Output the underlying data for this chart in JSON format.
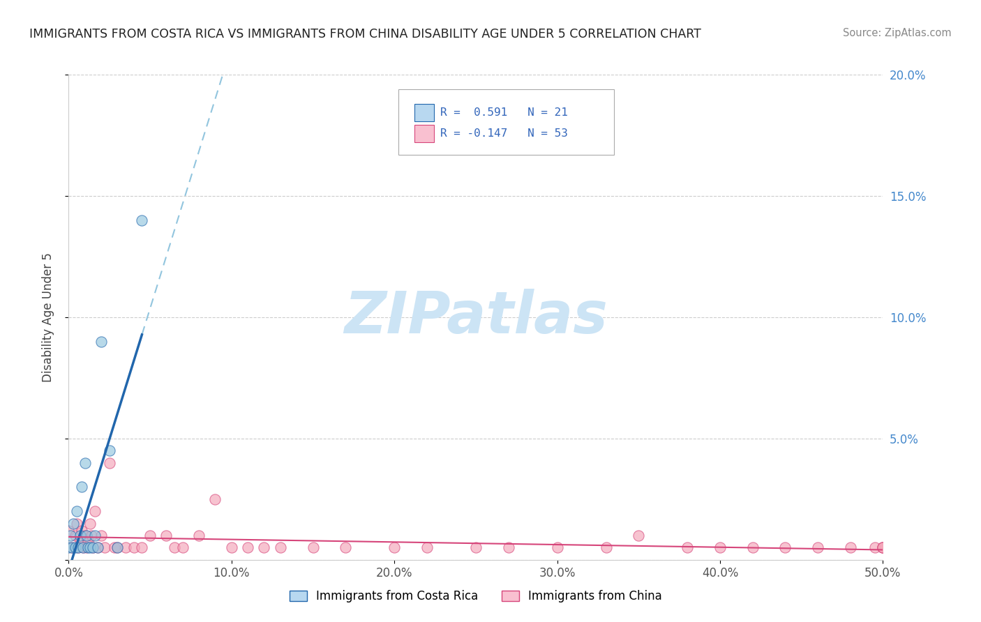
{
  "title": "IMMIGRANTS FROM COSTA RICA VS IMMIGRANTS FROM CHINA DISABILITY AGE UNDER 5 CORRELATION CHART",
  "source": "Source: ZipAtlas.com",
  "ylabel": "Disability Age Under 5",
  "xmin": 0.0,
  "xmax": 0.5,
  "ymin": 0.0,
  "ymax": 0.2,
  "xtick_labels": [
    "0.0%",
    "10.0%",
    "20.0%",
    "30.0%",
    "40.0%",
    "50.0%"
  ],
  "xtick_vals": [
    0.0,
    0.1,
    0.2,
    0.3,
    0.4,
    0.5
  ],
  "ytick_labels": [
    "",
    "5.0%",
    "10.0%",
    "15.0%",
    "20.0%"
  ],
  "ytick_vals": [
    0.0,
    0.05,
    0.1,
    0.15,
    0.2
  ],
  "costa_rica_R": 0.591,
  "costa_rica_N": 21,
  "china_R": -0.147,
  "china_N": 53,
  "color_blue": "#92c5de",
  "color_pink": "#f4a4b8",
  "color_blue_line": "#2166ac",
  "color_pink_line": "#d6457a",
  "color_blue_dashed": "#92c5de",
  "legend_blue_box": "#b8d8f0",
  "legend_pink_box": "#f9c0d0",
  "watermark_color": "#cce4f5",
  "costa_rica_x": [
    0.0,
    0.001,
    0.002,
    0.003,
    0.004,
    0.005,
    0.006,
    0.007,
    0.008,
    0.009,
    0.01,
    0.011,
    0.012,
    0.013,
    0.015,
    0.016,
    0.018,
    0.02,
    0.025,
    0.03,
    0.045
  ],
  "costa_rica_y": [
    0.005,
    0.01,
    0.005,
    0.015,
    0.005,
    0.02,
    0.005,
    0.01,
    0.03,
    0.005,
    0.04,
    0.01,
    0.005,
    0.005,
    0.005,
    0.01,
    0.005,
    0.09,
    0.045,
    0.005,
    0.14
  ],
  "china_x": [
    0.0,
    0.002,
    0.004,
    0.005,
    0.006,
    0.007,
    0.008,
    0.009,
    0.01,
    0.011,
    0.012,
    0.013,
    0.014,
    0.015,
    0.016,
    0.018,
    0.02,
    0.022,
    0.025,
    0.028,
    0.03,
    0.035,
    0.04,
    0.045,
    0.05,
    0.06,
    0.065,
    0.07,
    0.08,
    0.09,
    0.1,
    0.11,
    0.12,
    0.13,
    0.15,
    0.17,
    0.2,
    0.22,
    0.25,
    0.27,
    0.3,
    0.33,
    0.35,
    0.38,
    0.4,
    0.42,
    0.44,
    0.46,
    0.48,
    0.495,
    0.5,
    0.5,
    0.5
  ],
  "china_y": [
    0.012,
    0.005,
    0.01,
    0.015,
    0.005,
    0.008,
    0.012,
    0.005,
    0.01,
    0.005,
    0.008,
    0.015,
    0.01,
    0.005,
    0.02,
    0.005,
    0.01,
    0.005,
    0.04,
    0.005,
    0.005,
    0.005,
    0.005,
    0.005,
    0.01,
    0.01,
    0.005,
    0.005,
    0.01,
    0.025,
    0.005,
    0.005,
    0.005,
    0.005,
    0.005,
    0.005,
    0.005,
    0.005,
    0.005,
    0.005,
    0.005,
    0.005,
    0.01,
    0.005,
    0.005,
    0.005,
    0.005,
    0.005,
    0.005,
    0.005,
    0.005,
    0.005,
    0.005
  ]
}
